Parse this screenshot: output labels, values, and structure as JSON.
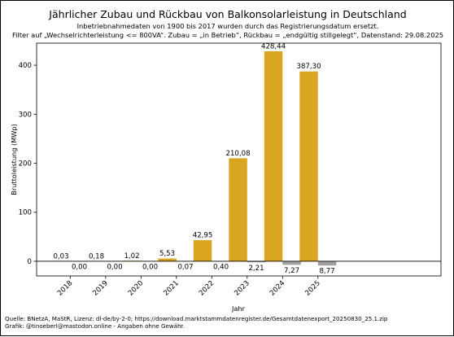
{
  "chart_data": {
    "type": "bar",
    "title": "Jährlicher Zubau und Rückbau von Balkonsolarleistung in Deutschland",
    "subtitle": [
      "Inbetriebnahmedaten von 1900 bis 2017 wurden durch das Registrierungsdatum ersetzt.",
      "Filter auf „Wechselrichterleistung <= 800VA“. Zubau = „in Betrieb“, Rückbau = „endgültig stillgelegt“, Datenstand: 29.08.2025"
    ],
    "xlabel": "Jahr",
    "ylabel": "Bruttoleistung (MWp)",
    "categories": [
      "2018",
      "2019",
      "2020",
      "2021",
      "2022",
      "2023",
      "2024",
      "2025"
    ],
    "ylim": [
      -30,
      445
    ],
    "yticks": [
      0,
      100,
      200,
      300,
      400
    ],
    "grid": false,
    "series": [
      {
        "key": "zubau",
        "color": "#daa520",
        "values": [
          0.03,
          0.18,
          1.02,
          5.53,
          42.95,
          210.08,
          428.44,
          387.3
        ],
        "labels": [
          "0,03",
          "0,18",
          "1,02",
          "5,53",
          "42,95",
          "210,08",
          "428,44",
          "387,30"
        ]
      },
      {
        "key": "rueckbau",
        "color": "#a0a0a0",
        "values": [
          0.0,
          0.0,
          0.0,
          -0.07,
          -0.4,
          -2.21,
          -7.27,
          -8.77
        ],
        "labels": [
          "0,00",
          "0,00",
          "0,00",
          "0,07",
          "0,40",
          "2,21",
          "7,27",
          "8,77"
        ]
      }
    ],
    "source": [
      "Quelle: BNetzA, MaStR, Lizenz: dl-de/by-2-0; https://download.marktstammdatenregister.de/Gesamtdatenexport_20250830_25.1.zip",
      "Grafik: @tinoeberl@mastodon.online - Angaben ohne Gewähr."
    ]
  }
}
